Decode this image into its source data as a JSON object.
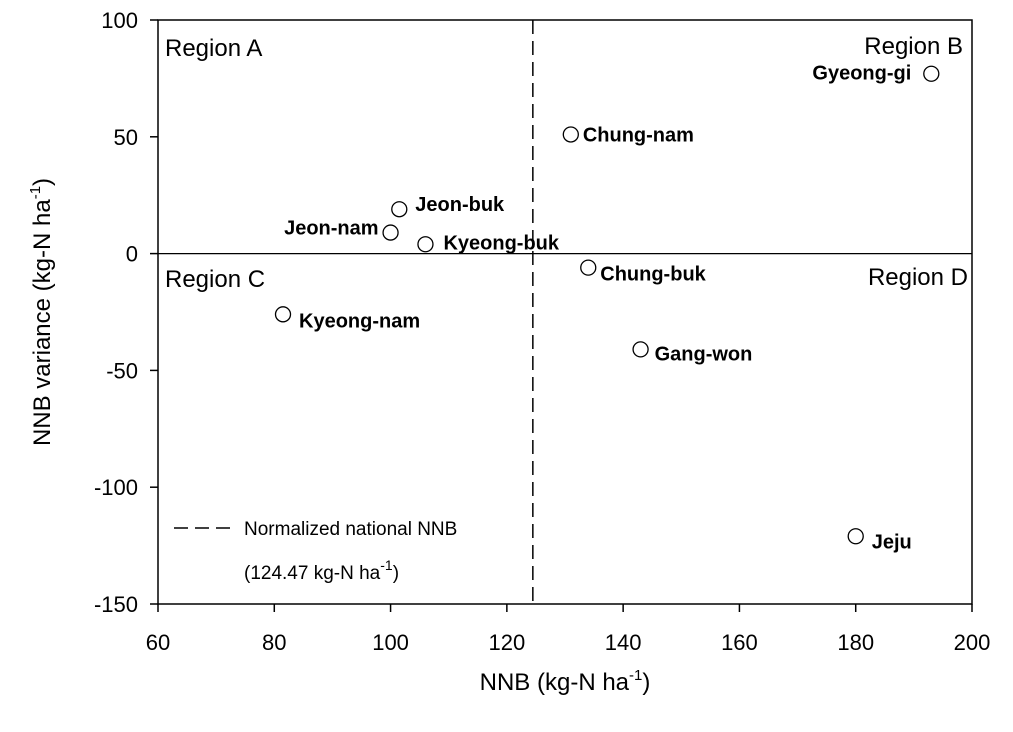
{
  "chart_data": {
    "type": "scatter",
    "title": "",
    "xlabel": "NNB (kg-N ha",
    "xlabel_sup": "-1",
    "xlabel_end": ")",
    "ylabel": "NNB variance (kg-N ha",
    "ylabel_sup": "-1",
    "ylabel_end": ")",
    "xlim": [
      60,
      200
    ],
    "ylim": [
      -150,
      100
    ],
    "xticks": [
      60,
      80,
      100,
      120,
      140,
      160,
      180,
      200
    ],
    "yticks": [
      -150,
      -100,
      -50,
      0,
      50,
      100
    ],
    "grid": false,
    "marker": "open-circle",
    "points": [
      {
        "label": "Gyeong-gi",
        "x": 193,
        "y": 77
      },
      {
        "label": "Chung-nam",
        "x": 131,
        "y": 51
      },
      {
        "label": "Jeon-buk",
        "x": 101.5,
        "y": 19
      },
      {
        "label": "Jeon-nam",
        "x": 100,
        "y": 9
      },
      {
        "label": "Kyeong-buk",
        "x": 106,
        "y": 4
      },
      {
        "label": "Chung-buk",
        "x": 134,
        "y": -6
      },
      {
        "label": "Kyeong-nam",
        "x": 81.5,
        "y": -26
      },
      {
        "label": "Gang-won",
        "x": 143,
        "y": -41
      },
      {
        "label": "Jeju",
        "x": 180,
        "y": -121
      }
    ],
    "reference_lines": [
      {
        "orientation": "vertical",
        "value": 124.47,
        "style": "dashed"
      },
      {
        "orientation": "horizontal",
        "value": 0,
        "style": "solid"
      }
    ],
    "regions": [
      {
        "label": "Region A"
      },
      {
        "label": "Region B"
      },
      {
        "label": "Region C"
      },
      {
        "label": "Region D"
      }
    ],
    "legend": {
      "placement": "bottom-left",
      "line1": "Normalized national NNB",
      "line2": "(124.47 kg-N ha",
      "line2_sup": "-1",
      "line2_end": ")"
    }
  }
}
